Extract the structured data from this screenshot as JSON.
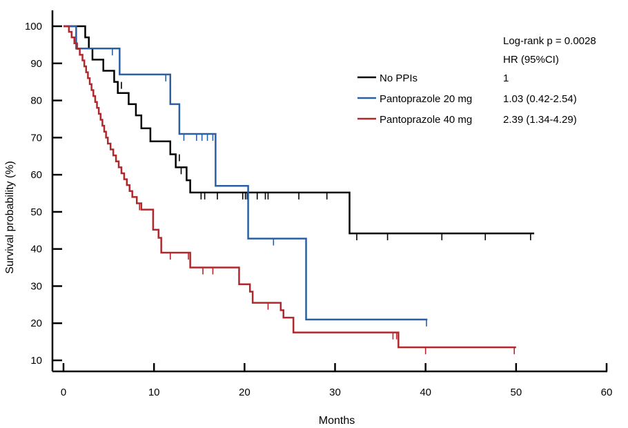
{
  "chart_data": {
    "type": "line",
    "subtype": "kaplan-meier",
    "title": "",
    "xlabel": "Months",
    "ylabel": "Survival probability (%)",
    "xlim": [
      0,
      60
    ],
    "ylim": [
      10,
      100
    ],
    "xticks": [
      0,
      10,
      20,
      30,
      40,
      50,
      60
    ],
    "yticks": [
      10,
      20,
      30,
      40,
      50,
      60,
      70,
      80,
      90,
      100
    ],
    "grid": false,
    "legend_position": "top-right",
    "annotation": {
      "logrank": "Log-rank p = 0.0028",
      "hr_header": "HR (95%CI)"
    },
    "series": [
      {
        "name": "No PPIs",
        "hr": "1",
        "color": "#000000",
        "x": [
          0,
          2.4,
          2.8,
          3.2,
          4.4,
          5.6,
          6.0,
          7.2,
          8.0,
          8.6,
          9.6,
          11.8,
          12.4,
          13.6,
          14.0,
          31.6,
          52.0
        ],
        "y": [
          100,
          97,
          94,
          91,
          88,
          85,
          82,
          79,
          76,
          72.5,
          69,
          65.5,
          62,
          58.5,
          55.2,
          44.2,
          44.2
        ],
        "censored_x": [
          6.4,
          12.8,
          13.0,
          15.2,
          15.6,
          17.0,
          19.8,
          20.1,
          20.3,
          21.4,
          22.3,
          22.6,
          26.0,
          29.1,
          32.4,
          35.8,
          41.8,
          46.6,
          51.6
        ],
        "censored_y": [
          85,
          65.5,
          62,
          55.2,
          55.2,
          55.2,
          55.2,
          55.2,
          55.2,
          55.2,
          55.2,
          55.2,
          55.2,
          55.2,
          44.2,
          44.2,
          44.2,
          44.2,
          44.2
        ]
      },
      {
        "name": "Pantoprazole 20 mg",
        "hr": "1.03 (0.42-2.54)",
        "color": "#2b5fa3",
        "x": [
          0,
          1.4,
          6.2,
          11.8,
          12.8,
          16.8,
          20.4,
          26.8,
          40.2
        ],
        "y": [
          100,
          94,
          87,
          79,
          71,
          57,
          42.8,
          21,
          21
        ],
        "censored_x": [
          5.4,
          11.3,
          13.3,
          14.7,
          15.3,
          15.9,
          16.5,
          23.2,
          40.1
        ],
        "censored_y": [
          94,
          87,
          71,
          71,
          71,
          71,
          71,
          42.8,
          21
        ]
      },
      {
        "name": "Pantoprazole 40 mg",
        "hr": "2.39 (1.34-4.29)",
        "color": "#b0282c",
        "x": [
          0,
          0.6,
          0.9,
          1.2,
          1.5,
          1.8,
          2.1,
          2.3,
          2.5,
          2.7,
          2.9,
          3.1,
          3.3,
          3.5,
          3.7,
          3.9,
          4.1,
          4.3,
          4.5,
          4.7,
          4.9,
          5.2,
          5.5,
          5.8,
          6.1,
          6.4,
          6.7,
          7.0,
          7.3,
          7.6,
          8.1,
          8.6,
          9.9,
          10.5,
          10.8,
          14.0,
          19.4,
          20.6,
          20.9,
          24.0,
          24.3,
          25.4,
          37.0,
          50.0
        ],
        "y": [
          100,
          98.5,
          97,
          95.4,
          93.9,
          92.3,
          90.8,
          89.2,
          87.6,
          86,
          84.4,
          82.8,
          81.2,
          79.6,
          78,
          76.4,
          74.8,
          73.2,
          71.6,
          70,
          68.4,
          66.8,
          65.2,
          63.6,
          62,
          60.4,
          58.8,
          57.2,
          55.6,
          54,
          52.3,
          50.6,
          45.2,
          43,
          39,
          35,
          30.5,
          28.5,
          25.5,
          23.5,
          21.5,
          17.5,
          13.5,
          13.5
        ],
        "censored_x": [
          8.4,
          11.8,
          13.8,
          15.4,
          16.5,
          22.6,
          36.4,
          36.8,
          40.0,
          49.8
        ],
        "censored_y": [
          52.3,
          39,
          39,
          35,
          35,
          25.5,
          17.5,
          17.5,
          13.5,
          13.5
        ]
      }
    ]
  }
}
